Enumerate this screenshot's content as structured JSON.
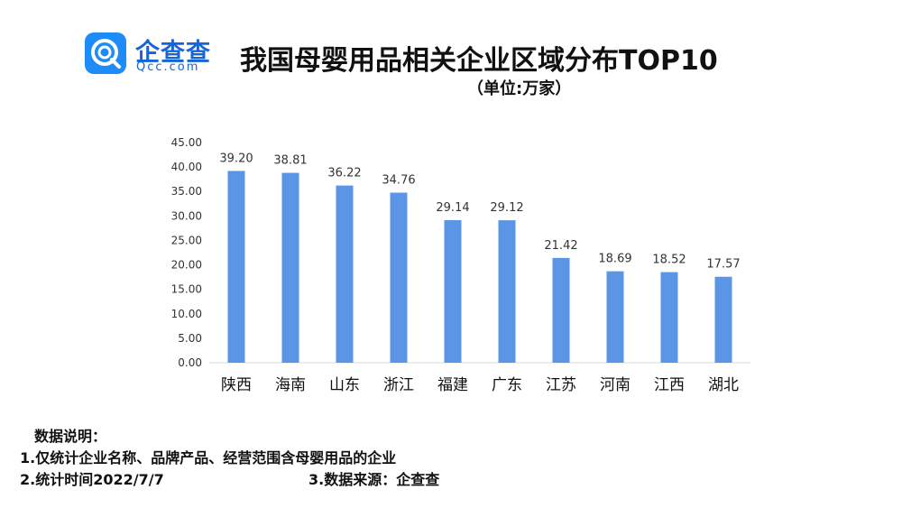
{
  "header": {
    "logo_name": "企查查",
    "logo_domain": "Qcc.com",
    "title": "我国母婴用品相关企业区域分布TOP10",
    "subtitle": "（单位:万家）"
  },
  "colors": {
    "bar": "#5b95e5",
    "axis": "#d9d9d9",
    "logo": "#1d8cf8"
  },
  "chart_data": {
    "type": "bar",
    "categories": [
      "陕西",
      "海南",
      "山东",
      "浙江",
      "福建",
      "广东",
      "江苏",
      "河南",
      "江西",
      "湖北"
    ],
    "values": [
      39.2,
      38.81,
      36.22,
      34.76,
      29.14,
      29.12,
      21.42,
      18.69,
      18.52,
      17.57
    ],
    "value_labels": [
      "39.20",
      "38.81",
      "36.22",
      "34.76",
      "29.14",
      "29.12",
      "21.42",
      "18.69",
      "18.52",
      "17.57"
    ],
    "y_ticks": [
      "0.00",
      "5.00",
      "10.00",
      "15.00",
      "20.00",
      "25.00",
      "30.00",
      "35.00",
      "40.00",
      "45.00"
    ],
    "ylim": [
      0,
      45
    ],
    "grid": false,
    "legend": false
  },
  "notes": {
    "heading": "数据说明：",
    "line1": "1.仅统计企业名称、品牌产品、经营范围含母婴用品的企业",
    "line2": "2.统计时间2022/7/7",
    "source": "3.数据来源：企查查"
  }
}
